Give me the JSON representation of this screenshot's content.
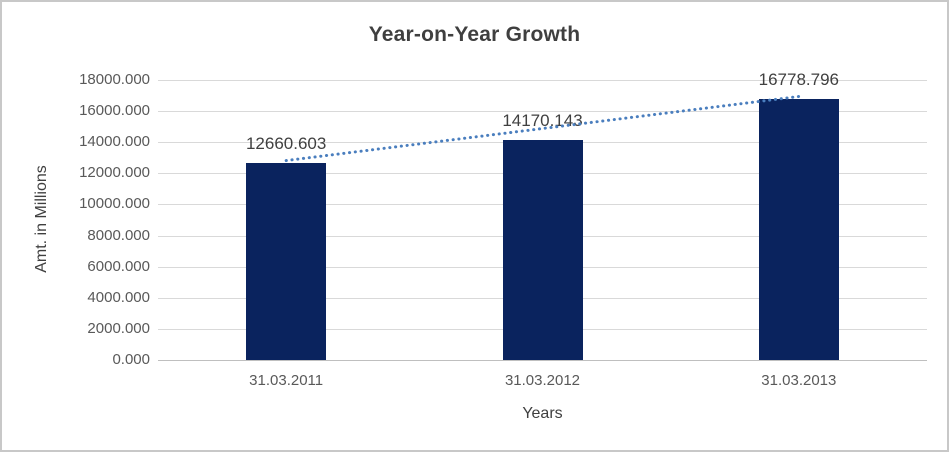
{
  "chart_data": {
    "type": "bar",
    "title": "Year-on-Year Growth",
    "xlabel": "Years",
    "ylabel": "Amt. in Millions",
    "categories": [
      "31.03.2011",
      "31.03.2012",
      "31.03.2013"
    ],
    "values": [
      12660.603,
      14170.143,
      16778.796
    ],
    "data_labels": [
      "12660.603",
      "14170.143",
      "16778.796"
    ],
    "ylim": [
      0,
      18000
    ],
    "y_tick_step": 2000,
    "y_tick_labels": [
      "0.000",
      "2000.000",
      "4000.000",
      "6000.000",
      "8000.000",
      "10000.000",
      "12000.000",
      "14000.000",
      "16000.000",
      "18000.000"
    ],
    "grid": true,
    "legend": "none",
    "trendline": true,
    "colors": {
      "bar": "#0A235E",
      "trendline": "#4A7EBE",
      "gridline": "#D9D9D9",
      "axis_line": "#BFBFBF",
      "title_text": "#3F3F3F",
      "data_label_text": "#404040",
      "tick_text": "#595959",
      "background": "#FFFFFF",
      "border": "#C8C8C8"
    }
  }
}
